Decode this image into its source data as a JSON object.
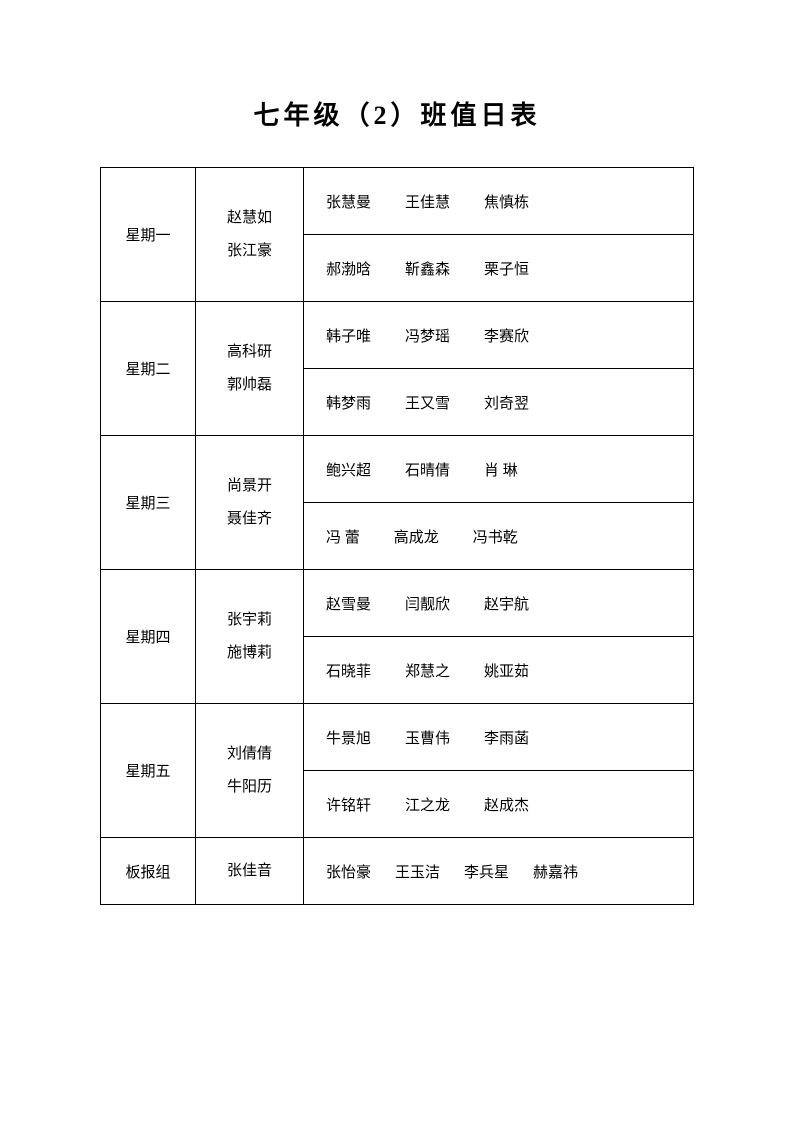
{
  "title": "七年级（2）班值日表",
  "schedule": [
    {
      "day": "星期一",
      "leaders": [
        "赵慧如",
        "张江豪"
      ],
      "rows": [
        [
          "张慧曼",
          "王佳慧",
          "焦慎栋"
        ],
        [
          "郝渤晗",
          "靳鑫森",
          "栗子恒"
        ]
      ]
    },
    {
      "day": "星期二",
      "leaders": [
        "高科研",
        "郭帅磊"
      ],
      "rows": [
        [
          "韩子唯",
          "冯梦瑶",
          "李赛欣"
        ],
        [
          "韩梦雨",
          "王又雪",
          "刘奇翌"
        ]
      ]
    },
    {
      "day": "星期三",
      "leaders": [
        "尚景开",
        "聂佳齐"
      ],
      "rows": [
        [
          "鲍兴超",
          "石晴倩",
          "肖 琳"
        ],
        [
          "冯 蕾",
          "高成龙",
          "冯书乾"
        ]
      ]
    },
    {
      "day": "星期四",
      "leaders": [
        "张宇莉",
        "施博莉"
      ],
      "rows": [
        [
          "赵雪曼",
          "闫靓欣",
          "赵宇航"
        ],
        [
          "石晓菲",
          "郑慧之",
          "姚亚茹"
        ]
      ]
    },
    {
      "day": "星期五",
      "leaders": [
        "刘倩倩",
        "牛阳历"
      ],
      "rows": [
        [
          "牛景旭",
          "玉曹伟",
          "李雨菡"
        ],
        [
          "许铭轩",
          "江之龙",
          "赵成杰"
        ]
      ]
    }
  ],
  "boardGroup": {
    "day": "板报组",
    "leader": "张佳音",
    "names": [
      "张怡豪",
      "王玉洁",
      "李兵星",
      "赫嘉祎"
    ]
  }
}
